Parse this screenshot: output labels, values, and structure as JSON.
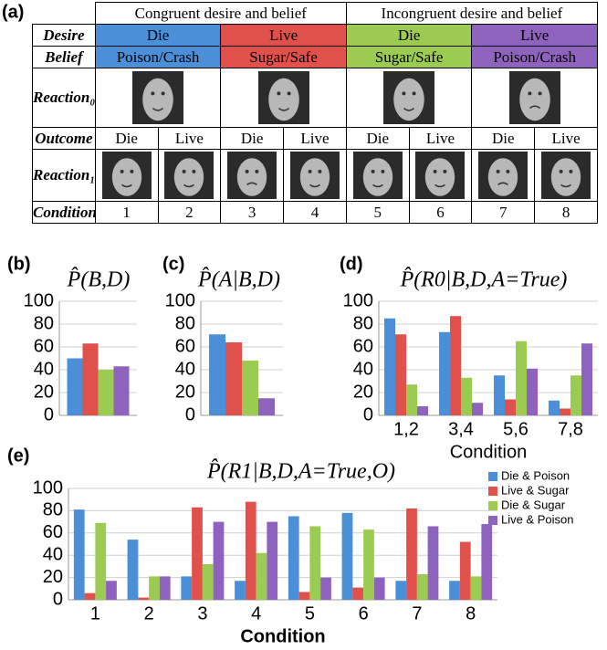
{
  "table": {
    "label": "(a)",
    "groups": [
      "Congruent desire and belief",
      "Incongruent desire and belief"
    ],
    "row_labels": [
      "Desire",
      "Belief",
      "Reaction₀",
      "Outcome",
      "Reaction₁",
      "Condition"
    ],
    "desire": [
      "Die",
      "Live",
      "Die",
      "Live"
    ],
    "belief": [
      "Poison/Crash",
      "Sugar/Safe",
      "Sugar/Safe",
      "Poison/Crash"
    ],
    "outcome": [
      "Die",
      "Live",
      "Die",
      "Live",
      "Die",
      "Live",
      "Die",
      "Live"
    ],
    "condition": [
      1,
      2,
      3,
      4,
      5,
      6,
      7,
      8
    ]
  },
  "chart_data": [
    {
      "type": "bar",
      "label": "(b)",
      "title": "P̂(B,D)",
      "values": [
        50,
        63,
        40,
        43
      ],
      "colors": [
        "#4a8fd8",
        "#e0514b",
        "#9ccb52",
        "#8d63bd"
      ],
      "ylim": [
        0,
        100
      ],
      "yticks": [
        0,
        20,
        40,
        60,
        80,
        100
      ],
      "grid": true
    },
    {
      "type": "bar",
      "label": "(c)",
      "title": "P̂(A|B,D)",
      "values": [
        71,
        64,
        48,
        15
      ],
      "colors": [
        "#4a8fd8",
        "#e0514b",
        "#9ccb52",
        "#8d63bd"
      ],
      "ylim": [
        0,
        100
      ],
      "yticks": [
        0,
        20,
        40,
        60,
        80,
        100
      ],
      "grid": true
    },
    {
      "type": "bar",
      "label": "(d)",
      "title": "P̂(R0|B,D,A=True)",
      "x_label": "Condition",
      "categories": [
        "1,2",
        "3,4",
        "5,6",
        "7,8"
      ],
      "series": [
        {
          "color": "#4a8fd8",
          "values": [
            85,
            73,
            35,
            13
          ]
        },
        {
          "color": "#e0514b",
          "values": [
            71,
            87,
            14,
            6
          ]
        },
        {
          "color": "#9ccb52",
          "values": [
            27,
            33,
            65,
            35
          ]
        },
        {
          "color": "#8d63bd",
          "values": [
            8,
            11,
            41,
            63
          ]
        }
      ],
      "ylim": [
        0,
        100
      ],
      "yticks": [
        0,
        20,
        40,
        60,
        80,
        100
      ],
      "grid": true
    },
    {
      "type": "bar",
      "label": "(e)",
      "title": "P̂(R1|B,D,A=True,O)",
      "x_label": "Condition",
      "categories": [
        "1",
        "2",
        "3",
        "4",
        "5",
        "6",
        "7",
        "8"
      ],
      "series": [
        {
          "name": "Die & Poison",
          "color": "#4a8fd8",
          "values": [
            81,
            54,
            21,
            17,
            75,
            78,
            17,
            17
          ]
        },
        {
          "name": "Live & Sugar",
          "color": "#e0514b",
          "values": [
            6,
            2,
            83,
            88,
            7,
            11,
            82,
            52
          ]
        },
        {
          "name": "Die & Sugar",
          "color": "#9ccb52",
          "values": [
            69,
            21,
            32,
            42,
            66,
            63,
            23,
            21
          ]
        },
        {
          "name": "Live & Poison",
          "color": "#8d63bd",
          "values": [
            17,
            21,
            70,
            70,
            20,
            20,
            66,
            68
          ]
        }
      ],
      "ylim": [
        0,
        100
      ],
      "yticks": [
        0,
        20,
        40,
        60,
        80,
        100
      ],
      "grid": true,
      "legend": "upper right"
    }
  ]
}
